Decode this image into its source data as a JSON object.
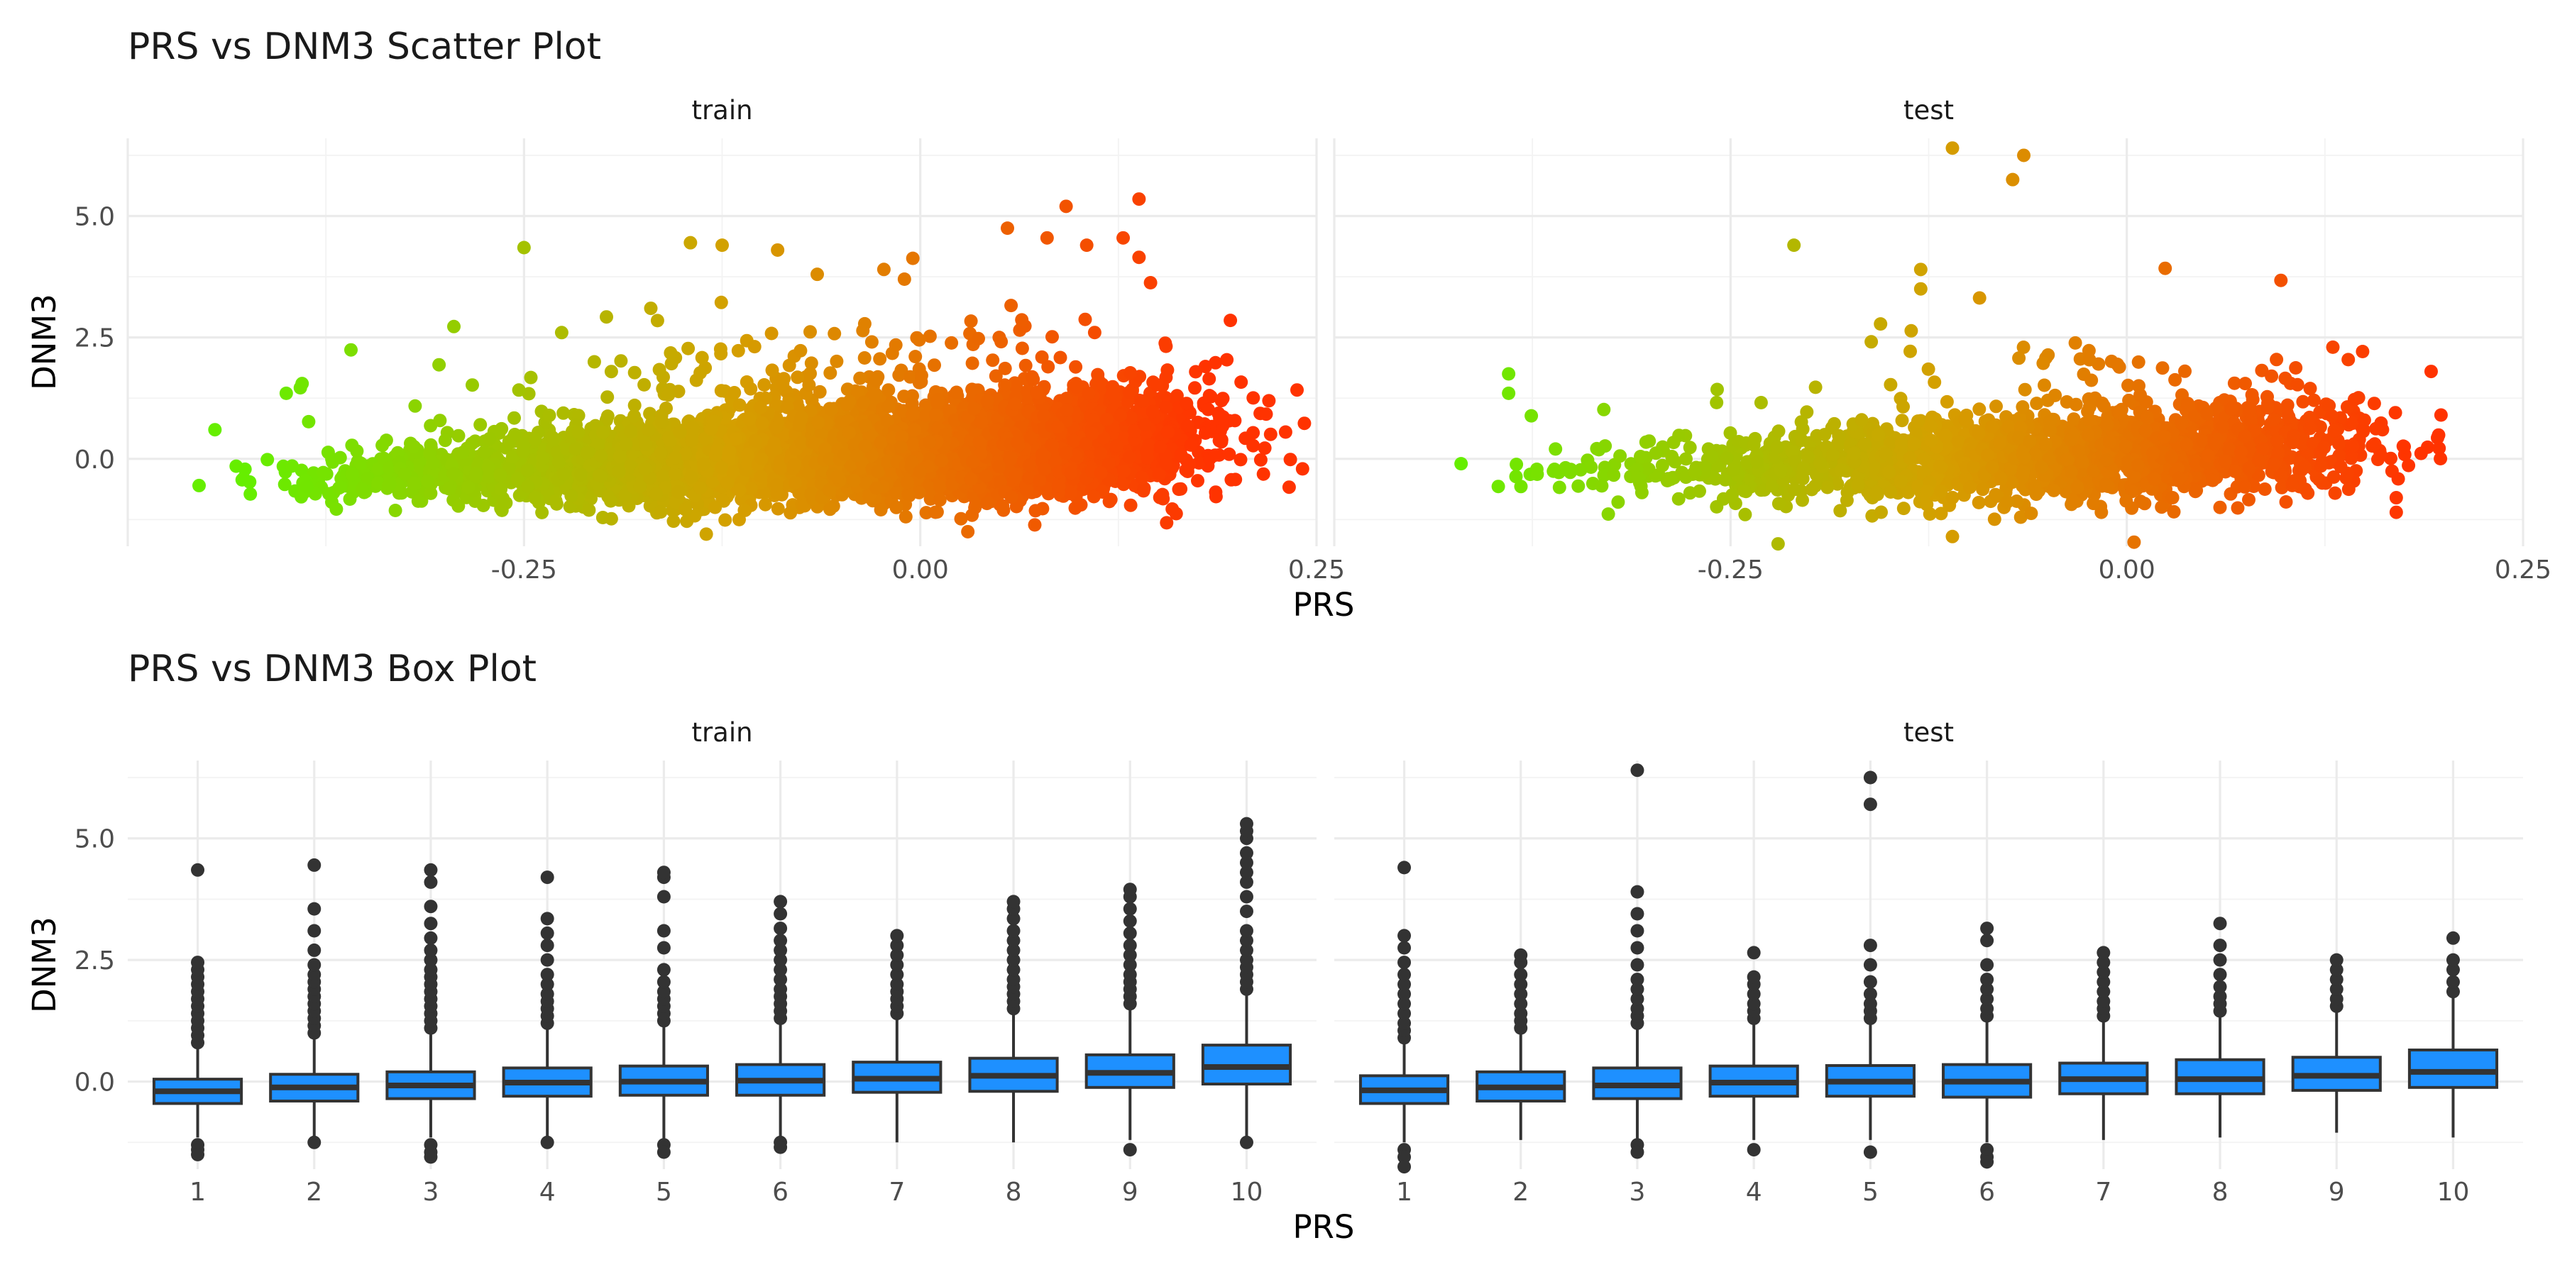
{
  "figure": {
    "scatter_title": "PRS vs DNM3 Scatter Plot",
    "box_title": "PRS vs DNM3 Box Plot"
  },
  "chart_data": [
    {
      "type": "scatter",
      "title": "PRS vs DNM3 Scatter Plot",
      "xlabel": "PRS",
      "ylabel": "DNM3",
      "facets": [
        "train",
        "test"
      ],
      "xlim": [
        -0.5,
        0.25
      ],
      "ylim": [
        -1.8,
        6.6
      ],
      "xticks": [
        -0.25,
        0.0,
        0.25
      ],
      "xtick_labels": [
        "-0.25",
        "0.00",
        "0.25"
      ],
      "yticks": [
        0.0,
        2.5,
        5.0
      ],
      "ytick_labels": [
        "0.0",
        "2.5",
        "5.0"
      ],
      "grid": true,
      "color_scale": {
        "low": "#66ee00",
        "mid": "#d4a000",
        "high": "#ff3300",
        "mapped_to": "PRS"
      },
      "panels": {
        "train": {
          "bulk": [
            {
              "x": -0.38,
              "y": -0.35,
              "sd": 0.28,
              "n": 60
            },
            {
              "x": -0.32,
              "y": -0.3,
              "sd": 0.3,
              "n": 140
            },
            {
              "x": -0.26,
              "y": -0.2,
              "sd": 0.33,
              "n": 260
            },
            {
              "x": -0.2,
              "y": -0.12,
              "sd": 0.36,
              "n": 420
            },
            {
              "x": -0.15,
              "y": -0.05,
              "sd": 0.4,
              "n": 600
            },
            {
              "x": -0.1,
              "y": 0.02,
              "sd": 0.42,
              "n": 760
            },
            {
              "x": -0.05,
              "y": 0.08,
              "sd": 0.45,
              "n": 860
            },
            {
              "x": 0.0,
              "y": 0.15,
              "sd": 0.48,
              "n": 880
            },
            {
              "x": 0.05,
              "y": 0.22,
              "sd": 0.5,
              "n": 760
            },
            {
              "x": 0.1,
              "y": 0.3,
              "sd": 0.52,
              "n": 520
            },
            {
              "x": 0.14,
              "y": 0.38,
              "sd": 0.55,
              "n": 260
            },
            {
              "x": 0.18,
              "y": 0.4,
              "sd": 0.6,
              "n": 60
            }
          ],
          "points": [
            {
              "x": -0.455,
              "y": -0.55
            },
            {
              "x": -0.445,
              "y": 0.6
            },
            {
              "x": -0.4,
              "y": 1.35
            },
            {
              "x": -0.39,
              "y": 1.55
            },
            {
              "x": -0.25,
              "y": 4.35
            },
            {
              "x": -0.17,
              "y": 3.1
            },
            {
              "x": -0.145,
              "y": 4.45
            },
            {
              "x": -0.125,
              "y": 4.4
            },
            {
              "x": -0.09,
              "y": 4.3
            },
            {
              "x": -0.065,
              "y": 3.8
            },
            {
              "x": -0.01,
              "y": 3.7
            },
            {
              "x": 0.055,
              "y": 4.75
            },
            {
              "x": 0.08,
              "y": 4.55
            },
            {
              "x": 0.092,
              "y": 5.2
            },
            {
              "x": 0.105,
              "y": 4.4
            },
            {
              "x": 0.128,
              "y": 4.55
            },
            {
              "x": 0.138,
              "y": 5.35
            },
            {
              "x": 0.138,
              "y": 4.15
            },
            {
              "x": 0.19,
              "y": 0.35
            },
            {
              "x": 0.19,
              "y": 1.2
            },
            {
              "x": 0.175,
              "y": -0.45
            },
            {
              "x": -0.135,
              "y": -1.55
            },
            {
              "x": 0.03,
              "y": -1.5
            }
          ]
        },
        "test": {
          "bulk": [
            {
              "x": -0.36,
              "y": -0.4,
              "sd": 0.28,
              "n": 20
            },
            {
              "x": -0.3,
              "y": -0.3,
              "sd": 0.32,
              "n": 60
            },
            {
              "x": -0.24,
              "y": -0.2,
              "sd": 0.35,
              "n": 110
            },
            {
              "x": -0.18,
              "y": -0.12,
              "sd": 0.38,
              "n": 180
            },
            {
              "x": -0.13,
              "y": -0.05,
              "sd": 0.4,
              "n": 250
            },
            {
              "x": -0.08,
              "y": 0.02,
              "sd": 0.42,
              "n": 300
            },
            {
              "x": -0.03,
              "y": 0.08,
              "sd": 0.44,
              "n": 320
            },
            {
              "x": 0.02,
              "y": 0.15,
              "sd": 0.46,
              "n": 300
            },
            {
              "x": 0.07,
              "y": 0.22,
              "sd": 0.48,
              "n": 230
            },
            {
              "x": 0.11,
              "y": 0.28,
              "sd": 0.5,
              "n": 130
            },
            {
              "x": 0.15,
              "y": 0.3,
              "sd": 0.55,
              "n": 40
            }
          ],
          "points": [
            {
              "x": -0.11,
              "y": 6.4
            },
            {
              "x": -0.065,
              "y": 6.25
            },
            {
              "x": -0.072,
              "y": 5.75
            },
            {
              "x": -0.21,
              "y": 4.4
            },
            {
              "x": -0.13,
              "y": 3.9
            },
            {
              "x": -0.13,
              "y": 3.5
            },
            {
              "x": -0.42,
              "y": -0.1
            },
            {
              "x": -0.39,
              "y": 1.75
            },
            {
              "x": -0.39,
              "y": 1.35
            },
            {
              "x": -0.22,
              "y": -1.75
            },
            {
              "x": -0.11,
              "y": -1.6
            },
            {
              "x": 0.192,
              "y": 1.8
            },
            {
              "x": 0.17,
              "y": -0.8
            },
            {
              "x": 0.17,
              "y": -1.1
            },
            {
              "x": 0.175,
              "y": 0.25
            },
            {
              "x": 0.13,
              "y": 2.3
            }
          ]
        }
      }
    },
    {
      "type": "box",
      "title": "PRS vs DNM3 Box Plot",
      "xlabel": "PRS",
      "ylabel": "DNM3",
      "facets": [
        "train",
        "test"
      ],
      "categories": [
        "1",
        "2",
        "3",
        "4",
        "5",
        "6",
        "7",
        "8",
        "9",
        "10"
      ],
      "ylim": [
        -1.8,
        6.6
      ],
      "yticks": [
        0.0,
        2.5,
        5.0
      ],
      "ytick_labels": [
        "0.0",
        "2.5",
        "5.0"
      ],
      "grid": true,
      "box_fill": "#1e90ff",
      "box_stroke": "#333333",
      "panels": {
        "train": [
          {
            "q1": -0.45,
            "median": -0.2,
            "q3": 0.05,
            "whisker_low": -1.15,
            "whisker_high": 0.75,
            "outliers_high": [
              0.8,
              0.95,
              1.1,
              1.25,
              1.4,
              1.55,
              1.7,
              1.85,
              2.0,
              2.15,
              2.3,
              2.45,
              4.35
            ],
            "outliers_low": [
              -1.3,
              -1.4,
              -1.5
            ]
          },
          {
            "q1": -0.4,
            "median": -0.12,
            "q3": 0.15,
            "whisker_low": -1.2,
            "whisker_high": 0.95,
            "outliers_high": [
              1.0,
              1.15,
              1.3,
              1.45,
              1.6,
              1.75,
              1.9,
              2.05,
              2.2,
              2.4,
              2.7,
              3.1,
              3.55,
              4.45
            ],
            "outliers_low": [
              -1.25
            ]
          },
          {
            "q1": -0.35,
            "median": -0.08,
            "q3": 0.2,
            "whisker_low": -1.15,
            "whisker_high": 1.05,
            "outliers_high": [
              1.1,
              1.25,
              1.4,
              1.55,
              1.7,
              1.85,
              2.0,
              2.15,
              2.3,
              2.5,
              2.7,
              2.95,
              3.25,
              3.6,
              4.1,
              4.35
            ],
            "outliers_low": [
              -1.3,
              -1.45,
              -1.55
            ]
          },
          {
            "q1": -0.3,
            "median": -0.02,
            "q3": 0.28,
            "whisker_low": -1.2,
            "whisker_high": 1.15,
            "outliers_high": [
              1.2,
              1.35,
              1.5,
              1.65,
              1.8,
              2.0,
              2.2,
              2.5,
              2.8,
              3.05,
              3.35,
              4.2
            ],
            "outliers_low": [
              -1.25
            ]
          },
          {
            "q1": -0.28,
            "median": 0.0,
            "q3": 0.32,
            "whisker_low": -1.2,
            "whisker_high": 1.2,
            "outliers_high": [
              1.25,
              1.4,
              1.55,
              1.7,
              1.85,
              2.05,
              2.3,
              2.75,
              3.1,
              3.8,
              4.2,
              4.3
            ],
            "outliers_low": [
              -1.3,
              -1.45
            ]
          },
          {
            "q1": -0.28,
            "median": 0.02,
            "q3": 0.35,
            "whisker_low": -1.2,
            "whisker_high": 1.25,
            "outliers_high": [
              1.3,
              1.45,
              1.6,
              1.75,
              1.9,
              2.1,
              2.3,
              2.5,
              2.7,
              2.9,
              3.15,
              3.45,
              3.7
            ],
            "outliers_low": [
              -1.25,
              -1.35
            ]
          },
          {
            "q1": -0.22,
            "median": 0.06,
            "q3": 0.4,
            "whisker_low": -1.25,
            "whisker_high": 1.35,
            "outliers_high": [
              1.4,
              1.55,
              1.7,
              1.85,
              2.0,
              2.2,
              2.4,
              2.6,
              2.8,
              3.0
            ]
          },
          {
            "q1": -0.2,
            "median": 0.12,
            "q3": 0.48,
            "whisker_low": -1.25,
            "whisker_high": 1.45,
            "outliers_high": [
              1.5,
              1.65,
              1.8,
              1.95,
              2.1,
              2.3,
              2.5,
              2.7,
              2.9,
              3.1,
              3.35,
              3.55,
              3.7
            ]
          },
          {
            "q1": -0.12,
            "median": 0.18,
            "q3": 0.55,
            "whisker_low": -1.2,
            "whisker_high": 1.55,
            "outliers_high": [
              1.6,
              1.75,
              1.9,
              2.05,
              2.2,
              2.4,
              2.6,
              2.8,
              3.05,
              3.3,
              3.55,
              3.8,
              3.95
            ],
            "outliers_low": [
              -1.4
            ]
          },
          {
            "q1": -0.05,
            "median": 0.3,
            "q3": 0.75,
            "whisker_low": -1.15,
            "whisker_high": 1.85,
            "outliers_high": [
              1.9,
              2.05,
              2.2,
              2.35,
              2.5,
              2.7,
              2.9,
              3.1,
              3.5,
              3.8,
              4.1,
              4.3,
              4.5,
              4.7,
              5.0,
              5.15,
              5.3
            ],
            "outliers_low": [
              -1.25
            ]
          }
        ],
        "test": [
          {
            "q1": -0.45,
            "median": -0.18,
            "q3": 0.12,
            "whisker_low": -1.25,
            "whisker_high": 0.85,
            "outliers_high": [
              0.9,
              1.05,
              1.2,
              1.4,
              1.6,
              1.8,
              2.0,
              2.2,
              2.45,
              2.75,
              3.0,
              4.4
            ],
            "outliers_low": [
              -1.4,
              -1.55,
              -1.75
            ]
          },
          {
            "q1": -0.4,
            "median": -0.12,
            "q3": 0.2,
            "whisker_low": -1.2,
            "whisker_high": 1.05,
            "outliers_high": [
              1.1,
              1.25,
              1.4,
              1.6,
              1.8,
              2.0,
              2.2,
              2.45,
              2.6
            ]
          },
          {
            "q1": -0.35,
            "median": -0.08,
            "q3": 0.28,
            "whisker_low": -1.2,
            "whisker_high": 1.15,
            "outliers_high": [
              1.2,
              1.35,
              1.5,
              1.7,
              1.9,
              2.1,
              2.4,
              2.75,
              3.1,
              3.45,
              3.9,
              6.4
            ],
            "outliers_low": [
              -1.3,
              -1.45
            ]
          },
          {
            "q1": -0.3,
            "median": -0.02,
            "q3": 0.32,
            "whisker_low": -1.2,
            "whisker_high": 1.25,
            "outliers_high": [
              1.3,
              1.45,
              1.6,
              1.8,
              2.0,
              2.15,
              2.65
            ],
            "outliers_low": [
              -1.4
            ]
          },
          {
            "q1": -0.3,
            "median": 0.0,
            "q3": 0.33,
            "whisker_low": -1.2,
            "whisker_high": 1.25,
            "outliers_high": [
              1.3,
              1.45,
              1.6,
              1.8,
              2.05,
              2.4,
              2.8,
              5.7,
              6.25
            ],
            "outliers_low": [
              -1.45
            ]
          },
          {
            "q1": -0.32,
            "median": 0.0,
            "q3": 0.35,
            "whisker_low": -1.25,
            "whisker_high": 1.3,
            "outliers_high": [
              1.35,
              1.5,
              1.7,
              1.9,
              2.1,
              2.4,
              2.9,
              3.15
            ],
            "outliers_low": [
              -1.4,
              -1.55,
              -1.65
            ]
          },
          {
            "q1": -0.25,
            "median": 0.05,
            "q3": 0.38,
            "whisker_low": -1.2,
            "whisker_high": 1.3,
            "outliers_high": [
              1.35,
              1.5,
              1.65,
              1.85,
              2.05,
              2.25,
              2.45,
              2.65
            ]
          },
          {
            "q1": -0.25,
            "median": 0.05,
            "q3": 0.45,
            "whisker_low": -1.15,
            "whisker_high": 1.4,
            "outliers_high": [
              1.45,
              1.6,
              1.75,
              1.95,
              2.2,
              2.5,
              2.8,
              3.25
            ]
          },
          {
            "q1": -0.18,
            "median": 0.12,
            "q3": 0.5,
            "whisker_low": -1.05,
            "whisker_high": 1.5,
            "outliers_high": [
              1.55,
              1.7,
              1.9,
              2.1,
              2.3,
              2.5
            ]
          },
          {
            "q1": -0.12,
            "median": 0.2,
            "q3": 0.65,
            "whisker_low": -1.15,
            "whisker_high": 1.8,
            "outliers_high": [
              1.85,
              2.05,
              2.3,
              2.5,
              2.95
            ]
          }
        ]
      }
    }
  ]
}
